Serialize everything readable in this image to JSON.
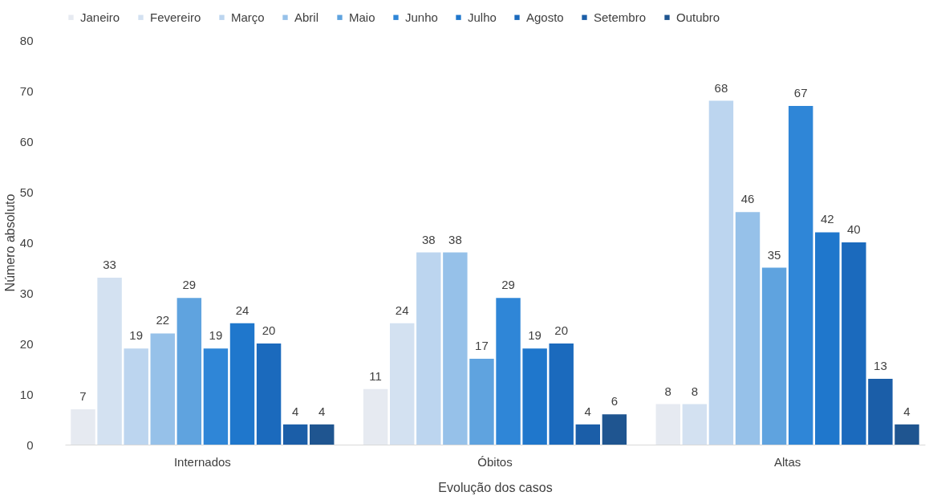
{
  "chart_data": {
    "type": "bar",
    "xlabel": "Evolução dos casos",
    "ylabel": "Número absoluto",
    "categories": [
      "Internados",
      "Óbitos",
      "Altas"
    ],
    "series": [
      {
        "name": "Janeiro",
        "color": "#e6eaf1",
        "values": [
          7,
          11,
          8
        ]
      },
      {
        "name": "Fevereiro",
        "color": "#d3e1f1",
        "values": [
          33,
          24,
          8
        ]
      },
      {
        "name": "Março",
        "color": "#bcd5ef",
        "values": [
          19,
          38,
          68
        ]
      },
      {
        "name": "Abril",
        "color": "#96c1e9",
        "values": [
          22,
          38,
          46
        ]
      },
      {
        "name": "Maio",
        "color": "#5fa3df",
        "values": [
          29,
          17,
          35
        ]
      },
      {
        "name": "Junho",
        "color": "#2f86d7",
        "values": [
          19,
          29,
          67
        ]
      },
      {
        "name": "Julho",
        "color": "#1f77cc",
        "values": [
          24,
          19,
          42
        ]
      },
      {
        "name": "Agosto",
        "color": "#1b6abd",
        "values": [
          20,
          20,
          40
        ]
      },
      {
        "name": "Setembro",
        "color": "#1b5ea8",
        "values": [
          4,
          4,
          13
        ]
      },
      {
        "name": "Outubro",
        "color": "#1f5590",
        "values": [
          4,
          6,
          4
        ]
      }
    ],
    "ylim": [
      0,
      80
    ],
    "yticks": [
      0,
      10,
      20,
      30,
      40,
      50,
      60,
      70,
      80
    ],
    "grid": false,
    "legend": "top",
    "data_labels": true
  }
}
